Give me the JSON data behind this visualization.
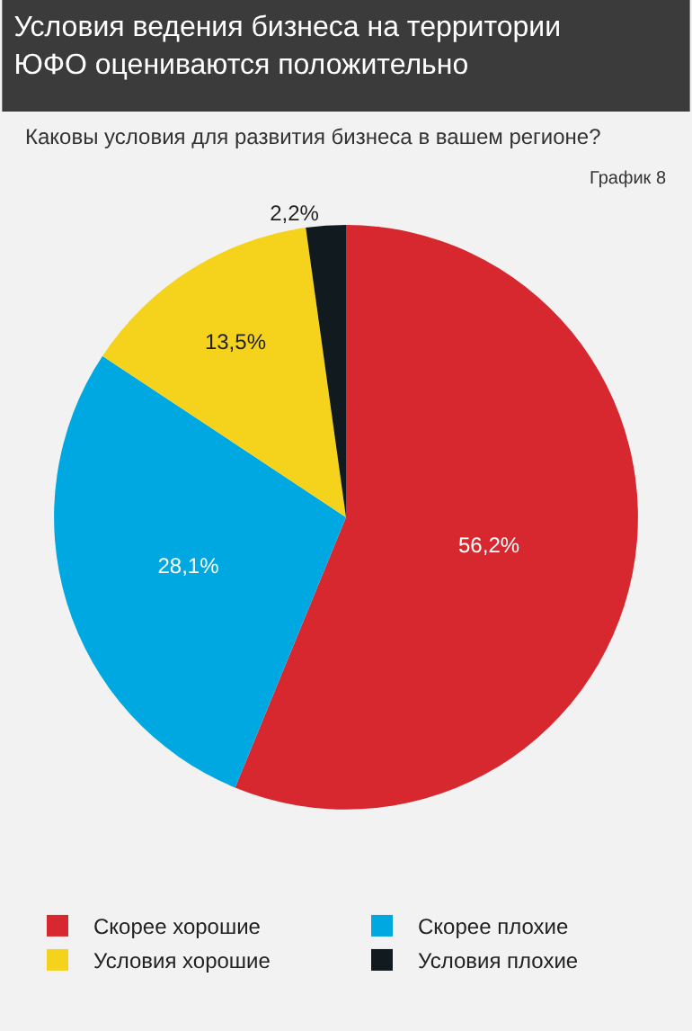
{
  "chart_data": {
    "type": "pie",
    "title": "Условия ведения бизнеса на территории\nЮФО оцениваются положительно",
    "subtitle": "Каковы условия для развития бизнеса в вашем регионе?",
    "annotations": [
      "График 8"
    ],
    "categories": [
      "Скорее хорошие",
      "Скорее плохие",
      "Условия хорошие",
      "Условия плохие"
    ],
    "values": [
      56.2,
      28.1,
      13.5,
      2.2
    ],
    "value_labels": [
      "56,2%",
      "28,1%",
      "13,5%",
      "2,2%"
    ],
    "colors": [
      "#d7282f",
      "#00a8e1",
      "#f5d31c",
      "#111a1e"
    ],
    "legend": "bottom"
  }
}
